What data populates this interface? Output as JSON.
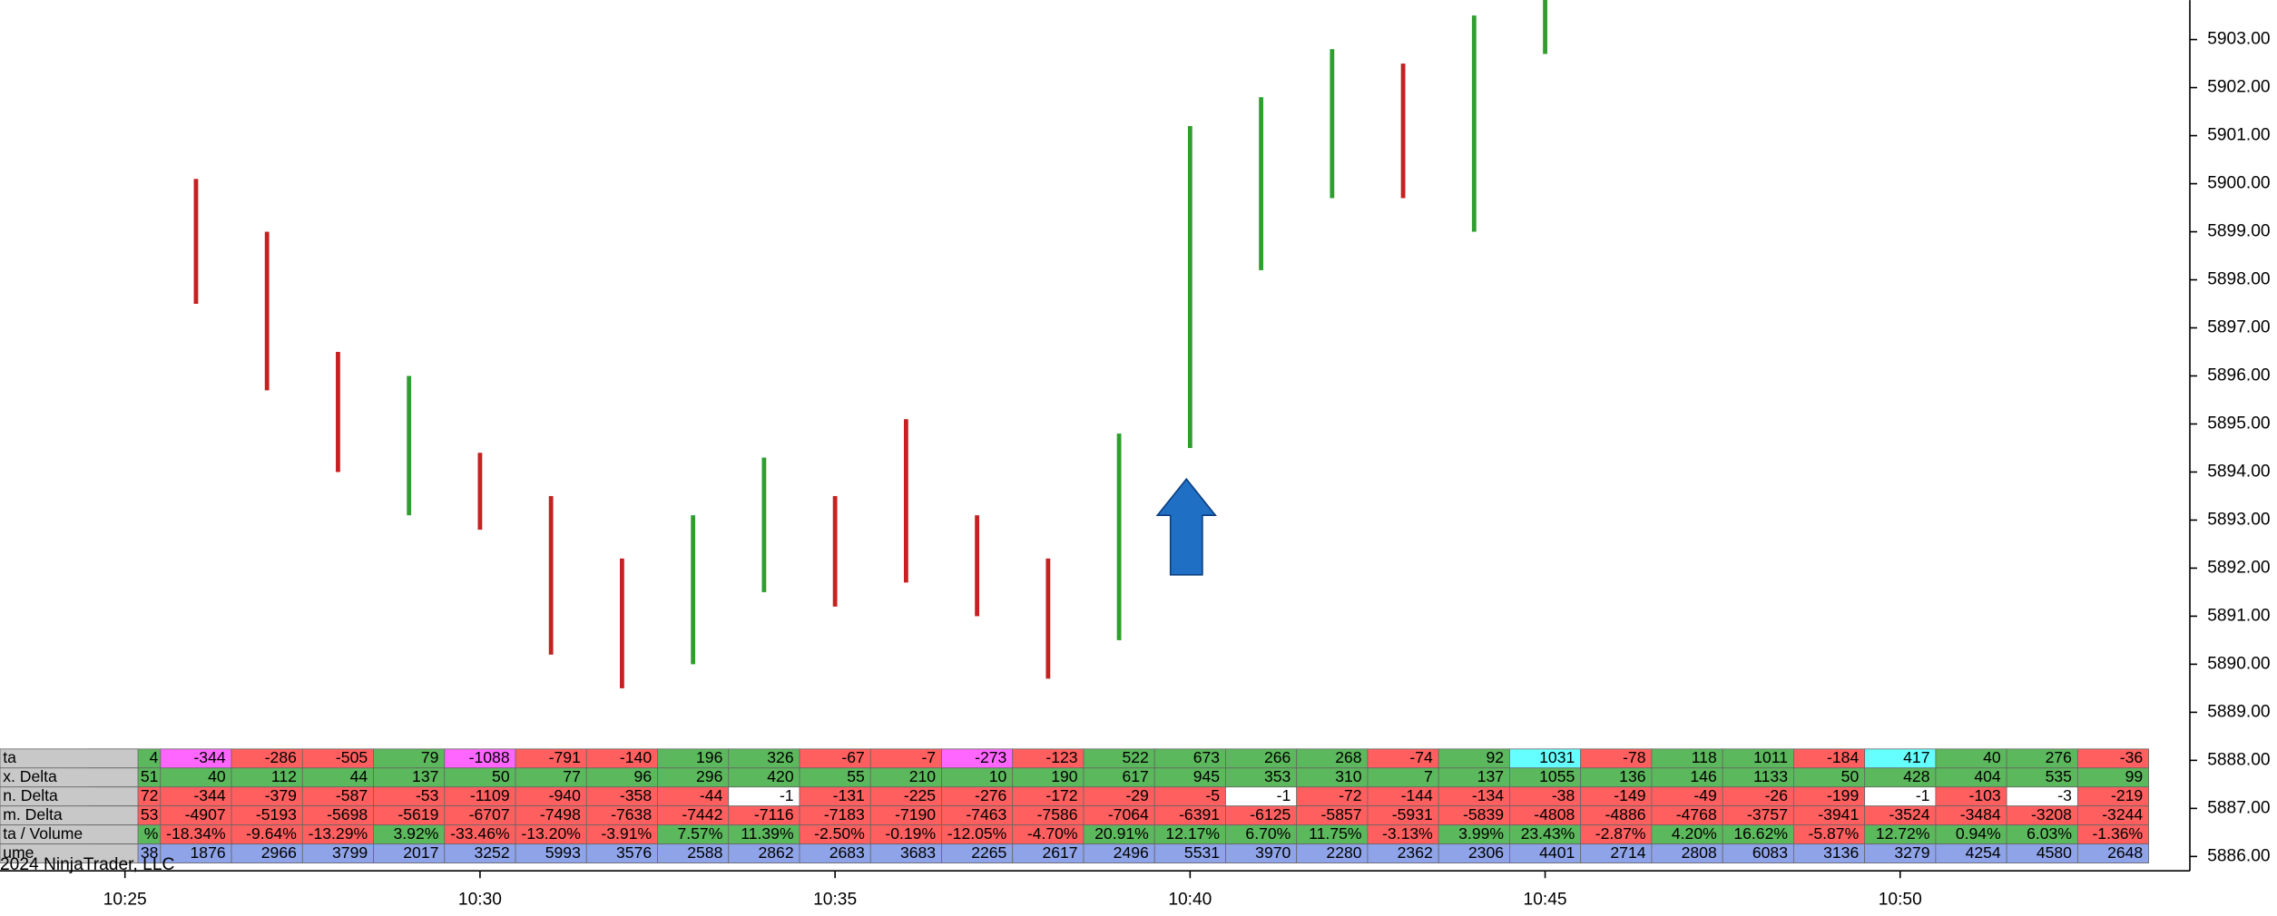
{
  "chart_data": {
    "type": "footprint",
    "copyright": "2024 NinjaTrader, LLC",
    "ylim": [
      5885.7,
      5903.82
    ],
    "yticks": [
      {
        "value": 5886,
        "label": "5886.00"
      },
      {
        "value": 5887,
        "label": "5887.00"
      },
      {
        "value": 5888,
        "label": "5888.00"
      },
      {
        "value": 5889,
        "label": "5889.00"
      },
      {
        "value": 5890,
        "label": "5890.00"
      },
      {
        "value": 5891,
        "label": "5891.00"
      },
      {
        "value": 5892,
        "label": "5892.00"
      },
      {
        "value": 5893,
        "label": "5893.00"
      },
      {
        "value": 5894,
        "label": "5894.00"
      },
      {
        "value": 5895,
        "label": "5895.00"
      },
      {
        "value": 5896,
        "label": "5896.00"
      },
      {
        "value": 5897,
        "label": "5897.00"
      },
      {
        "value": 5898,
        "label": "5898.00"
      },
      {
        "value": 5899,
        "label": "5899.00"
      },
      {
        "value": 5900,
        "label": "5900.00"
      },
      {
        "value": 5901,
        "label": "5901.00"
      },
      {
        "value": 5902,
        "label": "5902.00"
      },
      {
        "value": 5903,
        "label": "5903.00"
      }
    ],
    "xlim": [
      623.24,
      654.08
    ],
    "xticks": [
      {
        "value": 625,
        "label": "10:25"
      },
      {
        "value": 630,
        "label": "10:30"
      },
      {
        "value": 635,
        "label": "10:35"
      },
      {
        "value": 640,
        "label": "10:40"
      },
      {
        "value": 645,
        "label": "10:45"
      },
      {
        "value": 650,
        "label": "10:50"
      }
    ],
    "x": [
      626,
      627,
      628,
      629,
      630,
      631,
      632,
      633,
      634,
      635,
      636,
      637,
      638,
      639,
      640,
      641,
      642,
      643,
      644,
      645,
      646,
      647,
      648,
      649,
      650,
      651,
      652,
      653
    ],
    "up_color": "#2f9e2f",
    "down_color": "#c62020",
    "high": [
      5900.1,
      5899.0,
      5896.5,
      5896.0,
      5894.4,
      5893.5,
      5892.2,
      5893.1,
      5894.3,
      5893.5,
      5895.1,
      5893.1,
      5892.2,
      5894.8,
      5901.2,
      5901.8,
      5902.8,
      5902.5,
      5903.5,
      5904.2,
      null,
      null,
      null,
      null,
      null,
      null,
      null,
      null
    ],
    "low": [
      5897.5,
      5895.7,
      5894.0,
      5893.1,
      5892.8,
      5890.2,
      5889.5,
      5890.0,
      5891.5,
      5891.2,
      5891.7,
      5891.0,
      5889.7,
      5890.5,
      5894.5,
      5898.2,
      5899.7,
      5899.7,
      5899.0,
      5902.7,
      null,
      null,
      null,
      null,
      null,
      null,
      null,
      null
    ],
    "table": {
      "partial_x": 625,
      "rows": [
        {
          "name": "ta",
          "partial": "4",
          "positive_color": "#5cb85c",
          "negative_color": "#ff5f5f",
          "highlights": [
            {
              "index": 0,
              "color": "#ff66ff"
            },
            {
              "index": 4,
              "color": "#ff66ff"
            },
            {
              "index": 11,
              "color": "#ff66ff"
            },
            {
              "index": 19,
              "color": "#66ffff"
            },
            {
              "index": 24,
              "color": "#66ffff"
            }
          ],
          "values": [
            -344,
            -286,
            -505,
            79,
            -1088,
            -791,
            -140,
            196,
            326,
            -67,
            -7,
            -273,
            -123,
            522,
            673,
            266,
            268,
            -74,
            92,
            1031,
            -78,
            118,
            1011,
            -184,
            417,
            40,
            276,
            -36
          ]
        },
        {
          "name": "x. Delta",
          "partial": "51",
          "positive_color": "#5cb85c",
          "negative_color": "#5cb85c",
          "highlights": [],
          "values": [
            40,
            112,
            44,
            137,
            50,
            77,
            96,
            296,
            420,
            55,
            210,
            10,
            190,
            617,
            945,
            353,
            310,
            7,
            137,
            1055,
            136,
            146,
            1133,
            50,
            428,
            404,
            535,
            99
          ]
        },
        {
          "name": "n. Delta",
          "partial": "72",
          "positive_color": "#ff5f5f",
          "negative_color": "#ff5f5f",
          "highlights": [
            {
              "index": 8,
              "color": "#ffffff"
            },
            {
              "index": 15,
              "color": "#ffffff"
            },
            {
              "index": 24,
              "color": "#ffffff"
            },
            {
              "index": 26,
              "color": "#ffffff"
            }
          ],
          "values": [
            -344,
            -379,
            -587,
            -53,
            -1109,
            -940,
            -358,
            -44,
            -1,
            -131,
            -225,
            -276,
            -172,
            -29,
            -5,
            -1,
            -72,
            -144,
            -134,
            -38,
            -149,
            -49,
            -26,
            -199,
            -1,
            -103,
            -3,
            -219
          ]
        },
        {
          "name": "m. Delta",
          "partial": "53",
          "positive_color": "#ff5f5f",
          "negative_color": "#ff5f5f",
          "highlights": [],
          "values": [
            -4907,
            -5193,
            -5698,
            -5619,
            -6707,
            -7498,
            -7638,
            -7442,
            -7116,
            -7183,
            -7190,
            -7463,
            -7586,
            -7064,
            -6391,
            -6125,
            -5857,
            -5931,
            -5839,
            -4808,
            -4886,
            -4768,
            -3757,
            -3941,
            -3524,
            -3484,
            -3208,
            -3244
          ]
        },
        {
          "name": "ta / Volume",
          "partial": "%",
          "positive_color": "#5cb85c",
          "negative_color": "#ff5f5f",
          "highlights": [],
          "values": [
            -18.34,
            -9.64,
            -13.29,
            3.92,
            -33.46,
            -13.2,
            -3.91,
            7.57,
            11.39,
            -2.5,
            -0.19,
            -12.05,
            -4.7,
            20.91,
            12.17,
            6.7,
            11.75,
            -3.13,
            3.99,
            23.43,
            -2.87,
            4.2,
            16.62,
            -5.87,
            12.72,
            0.94,
            6.03,
            -1.36
          ],
          "value_labels": [
            "-18.34%",
            "-9.64%",
            "-13.29%",
            "3.92%",
            "-33.46%",
            "-13.20%",
            "-3.91%",
            "7.57%",
            "11.39%",
            "-2.50%",
            "-0.19%",
            "-12.05%",
            "-4.70%",
            "20.91%",
            "12.17%",
            "6.70%",
            "11.75%",
            "-3.13%",
            "3.99%",
            "23.43%",
            "-2.87%",
            "4.20%",
            "16.62%",
            "-5.87%",
            "12.72%",
            "0.94%",
            "6.03%",
            "-1.36%"
          ]
        },
        {
          "name": "ume",
          "partial": "38",
          "positive_color": "#8fa3e8",
          "negative_color": "#8fa3e8",
          "highlights": [],
          "values": [
            1876,
            2966,
            3799,
            2017,
            3252,
            5993,
            3576,
            2588,
            2862,
            2683,
            3683,
            2265,
            2617,
            2496,
            5531,
            3970,
            2280,
            2362,
            2306,
            4401,
            2714,
            2808,
            6083,
            3136,
            3279,
            4254,
            4580,
            2648
          ]
        }
      ]
    }
  }
}
